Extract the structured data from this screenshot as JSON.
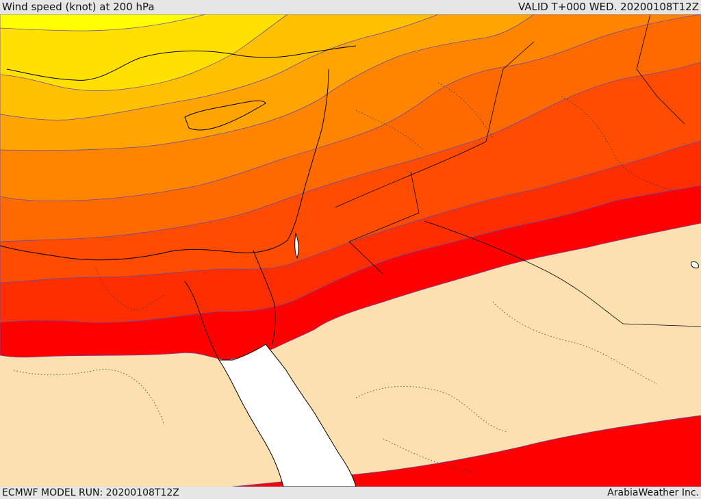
{
  "header": {
    "title": "Wind speed (knot) at 200 hPa",
    "valid": "VALID T+000 WED. 20200108T12Z"
  },
  "footer": {
    "model_run": "ECMWF MODEL RUN: 20200108T12Z",
    "credit": "ArabiaWeather Inc."
  },
  "map": {
    "band_colors": [
      "#ffff00",
      "#ffe000",
      "#ffc000",
      "#ffa400",
      "#ff8400",
      "#ff6a00",
      "#ff4c00",
      "#ff2e00",
      "#ff0000"
    ],
    "calm_color": "#fde0b0",
    "sea_color": "#ffffff",
    "contour_color": "#6a4aa0"
  }
}
